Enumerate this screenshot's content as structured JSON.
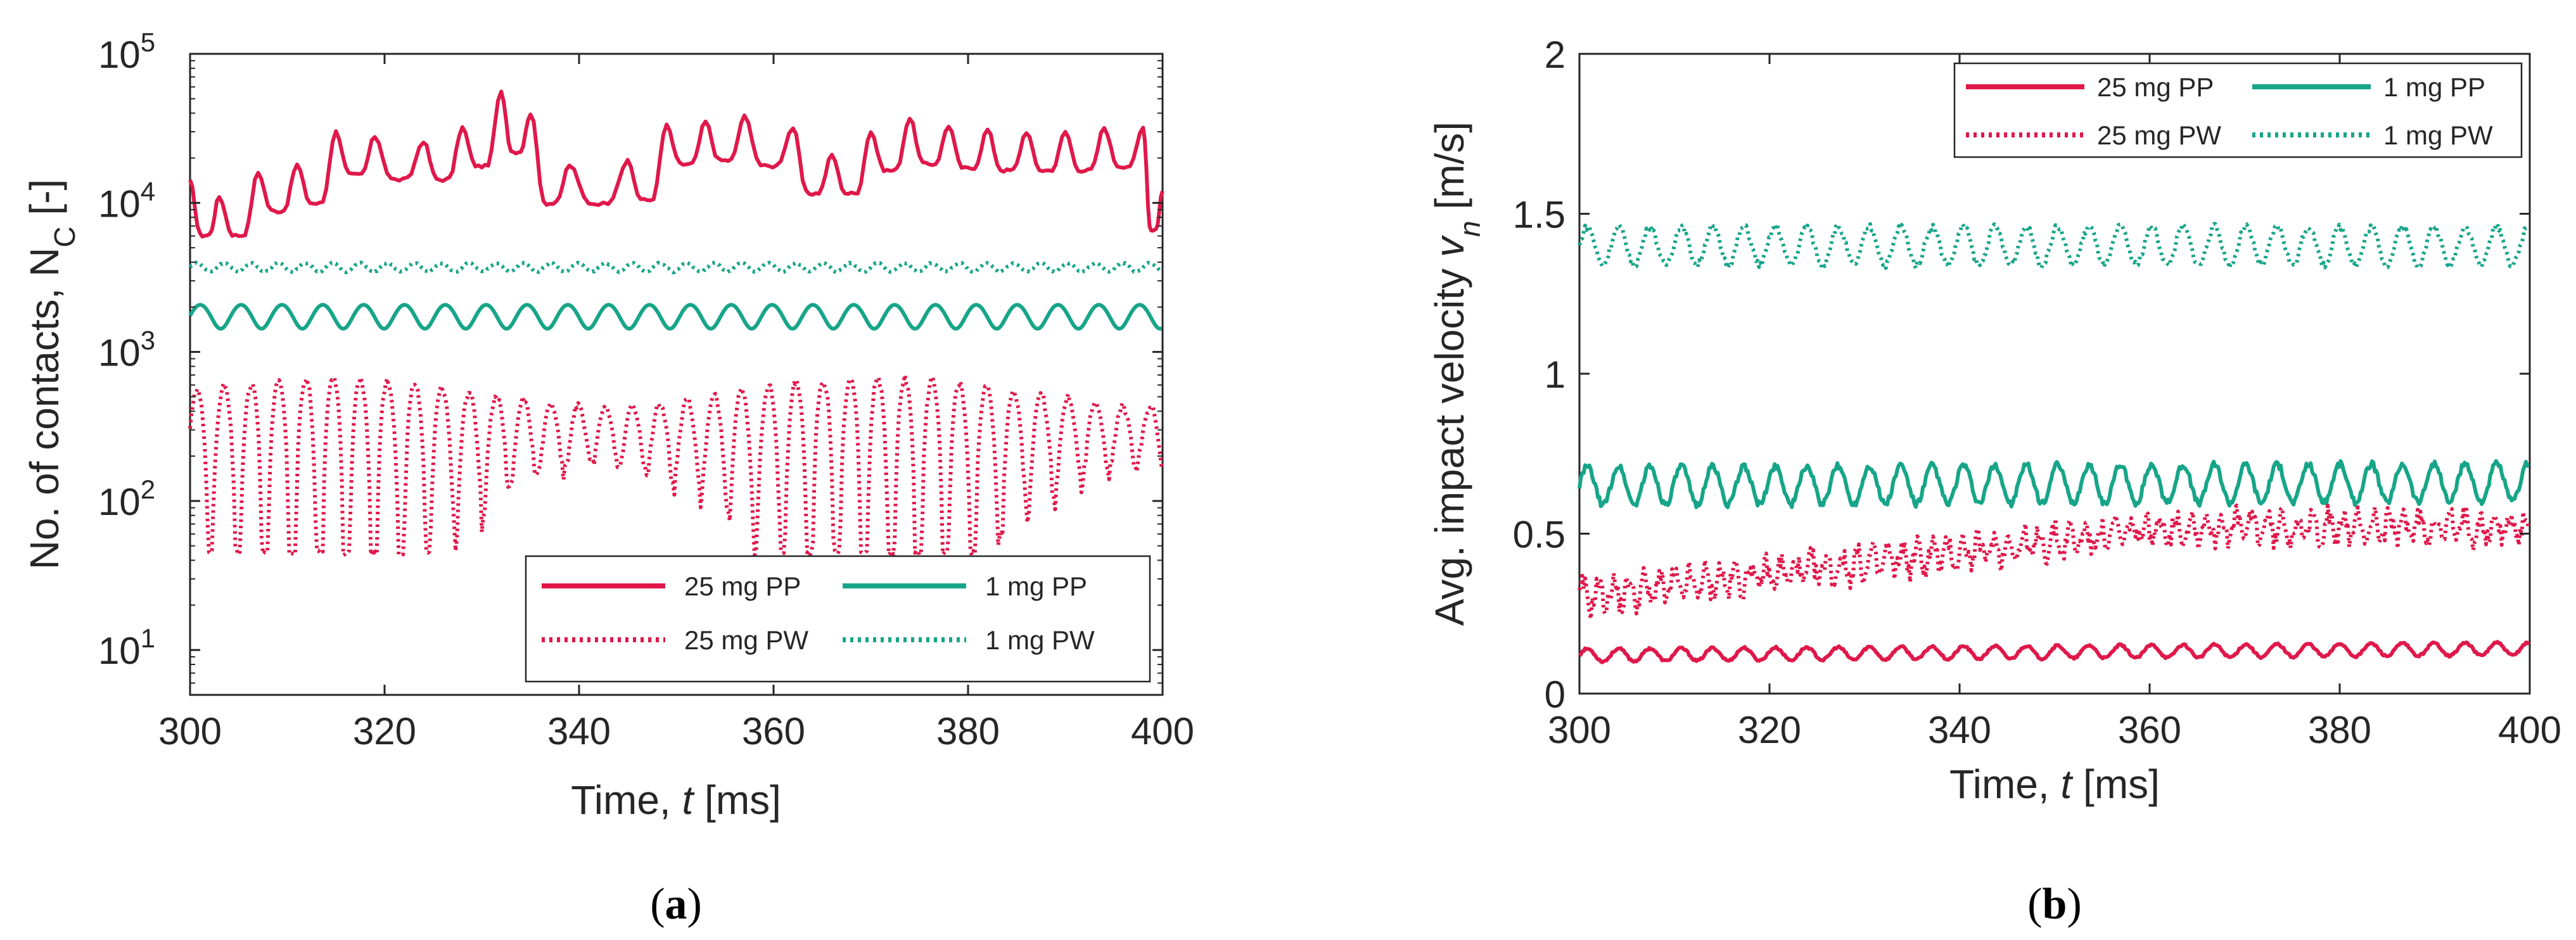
{
  "colors": {
    "red": "#e0184a",
    "green": "#17a589",
    "axis": "#262626"
  },
  "legend": [
    "25 mg PP",
    "1 mg PP",
    "25 mg PW",
    "1 mg PW"
  ],
  "chart_data": [
    {
      "panel_label": "a",
      "type": "line",
      "title": "",
      "xlabel": "Time, t [ms]",
      "ylabel": "No. of contacts, N_C [-]",
      "ylabel_prefix": "No. of contacts, N",
      "ylabel_sub": "C",
      "ylabel_suffix": " [-]",
      "xlabel_prefix": "Time, ",
      "xlabel_var": "t",
      "xlabel_suffix": " [ms]",
      "yscale": "log",
      "xlim": [
        300,
        400
      ],
      "ylim": [
        5,
        100000
      ],
      "x_ticks": [
        300,
        320,
        340,
        360,
        380,
        400
      ],
      "y_ticks": [
        10,
        100,
        1000,
        10000,
        100000
      ],
      "y_tick_base": "10",
      "y_tick_exponents": [
        "1",
        "2",
        "3",
        "4",
        "5"
      ],
      "legend_position": "lower-right",
      "series": [
        {
          "name": "25 mg PP",
          "color": "#e0184a",
          "style": "solid",
          "base": 20000,
          "amp": 8000,
          "period": 4.2,
          "noise": 0.05
        },
        {
          "name": "1 mg PP",
          "color": "#17a589",
          "style": "solid",
          "base": 1750,
          "amp": 320,
          "period": 4.2,
          "noise": 0.0
        },
        {
          "name": "25 mg PW",
          "color": "#e0184a",
          "style": "dotted",
          "base": 300,
          "amp": 330,
          "period": 2.8,
          "noise": 0.08
        },
        {
          "name": "1 mg PW",
          "color": "#17a589",
          "style": "dotted",
          "base": 3700,
          "amp": 250,
          "period": 2.8,
          "noise": 0.02
        }
      ],
      "peaks_25mgPP": {
        "x": [
          300,
          303,
          307,
          311,
          315,
          319,
          324,
          328,
          332,
          335,
          339,
          345,
          349,
          353,
          357,
          362,
          366,
          370,
          374,
          378,
          382,
          386,
          390,
          394,
          398,
          400
        ],
        "y": [
          14000,
          11000,
          16000,
          18000,
          30000,
          28000,
          26000,
          32000,
          55000,
          40000,
          18000,
          19000,
          33000,
          35000,
          38000,
          32000,
          21000,
          30000,
          37000,
          33000,
          31000,
          30000,
          30000,
          32000,
          32000,
          12000
        ]
      }
    },
    {
      "panel_label": "b",
      "type": "line",
      "title": "",
      "xlabel": "Time, t [ms]",
      "ylabel": "Avg. impact velocity v_n [m/s]",
      "ylabel_prefix": "Avg. impact velocity ",
      "ylabel_var": "v",
      "ylabel_sub": "n",
      "ylabel_suffix": " [m/s]",
      "xlabel_prefix": "Time, ",
      "xlabel_var": "t",
      "xlabel_suffix": " [ms]",
      "yscale": "linear",
      "xlim": [
        300,
        400
      ],
      "ylim": [
        0,
        2
      ],
      "x_ticks": [
        300,
        320,
        340,
        360,
        380,
        400
      ],
      "y_ticks": [
        0,
        0.5,
        1,
        1.5,
        2
      ],
      "y_tick_labels": [
        "0",
        "0.5",
        "1",
        "1.5",
        "2"
      ],
      "legend_position": "top-right",
      "series": [
        {
          "name": "25 mg PP",
          "color": "#e0184a",
          "style": "solid",
          "start": 0.12,
          "end": 0.14,
          "amp": 0.02,
          "period": 3.3
        },
        {
          "name": "1 mg PP",
          "color": "#17a589",
          "style": "solid",
          "start": 0.65,
          "end": 0.66,
          "amp": 0.06,
          "period": 3.3
        },
        {
          "name": "25 mg PW",
          "color": "#e0184a",
          "style": "dotted",
          "start": 0.3,
          "end": 0.52,
          "amp": 0.04,
          "period": 1.6
        },
        {
          "name": "1 mg PW",
          "color": "#17a589",
          "style": "dotted",
          "start": 1.4,
          "end": 1.4,
          "amp": 0.06,
          "period": 3.3
        }
      ]
    }
  ]
}
